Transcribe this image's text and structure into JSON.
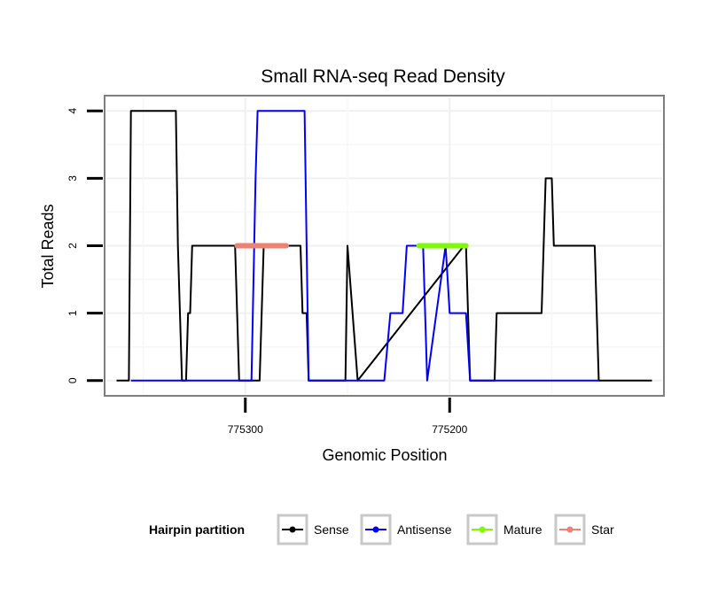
{
  "chart_data": {
    "type": "line",
    "title": "Small RNA-seq Read Density",
    "xlabel": "Genomic Position",
    "ylabel": "Total Reads",
    "x_reversed": true,
    "xlim": [
      775368,
      775096
    ],
    "ylim": [
      -0.2,
      4.2
    ],
    "x_ticks": [
      775300,
      775200
    ],
    "x_tick_labels": [
      "775300",
      "775200"
    ],
    "y_ticks": [
      0,
      1,
      2,
      3,
      4
    ],
    "y_tick_labels": [
      "0",
      "1",
      "2",
      "3",
      "4"
    ],
    "grid": true,
    "legend_position": "bottom",
    "legend_title": "Hairpin partition",
    "series": [
      {
        "name": "Sense",
        "color": "#000000",
        "width": "thin",
        "points": [
          [
            775363,
            0
          ],
          [
            775357,
            0
          ],
          [
            775356,
            4
          ],
          [
            775334,
            4
          ],
          [
            775333,
            2
          ],
          [
            775331,
            0
          ],
          [
            775329,
            0
          ],
          [
            775328,
            1
          ],
          [
            775327,
            1
          ],
          [
            775326,
            2
          ],
          [
            775305,
            2
          ],
          [
            775303,
            0
          ],
          [
            775293,
            0
          ],
          [
            775291,
            2
          ],
          [
            775273,
            2
          ],
          [
            775272,
            1
          ],
          [
            775270,
            1
          ],
          [
            775269,
            0
          ],
          [
            775251,
            0
          ],
          [
            775250,
            2
          ],
          [
            775245,
            0
          ],
          [
            775193,
            2
          ],
          [
            775192,
            2
          ],
          [
            775190,
            0
          ],
          [
            775178,
            0
          ],
          [
            775177,
            1
          ],
          [
            775155,
            1
          ],
          [
            775154,
            2
          ],
          [
            775153,
            3
          ],
          [
            775150,
            3
          ],
          [
            775149,
            2
          ],
          [
            775129,
            2
          ],
          [
            775127,
            0
          ],
          [
            775101,
            0
          ]
        ]
      },
      {
        "name": "Antisense",
        "color": "#0000ff",
        "width": "thin",
        "points": [
          [
            775356,
            0
          ],
          [
            775297,
            0
          ],
          [
            775295,
            3
          ],
          [
            775294,
            4
          ],
          [
            775271,
            4
          ],
          [
            775269,
            0
          ],
          [
            775232,
            0
          ],
          [
            775229,
            1
          ],
          [
            775223,
            1
          ],
          [
            775221,
            2
          ],
          [
            775213,
            2
          ],
          [
            775211,
            0
          ],
          [
            775202,
            2
          ],
          [
            775200,
            1
          ],
          [
            775192,
            1
          ],
          [
            775190,
            0
          ],
          [
            775127,
            0
          ]
        ]
      },
      {
        "name": "Mature",
        "color": "#7cfc00",
        "width": "thick",
        "points": [
          [
            775215,
            2
          ],
          [
            775192,
            2
          ]
        ]
      },
      {
        "name": "Star",
        "color": "#f08070",
        "width": "thick",
        "points": [
          [
            775304,
            2
          ],
          [
            775280,
            2
          ]
        ]
      }
    ]
  }
}
